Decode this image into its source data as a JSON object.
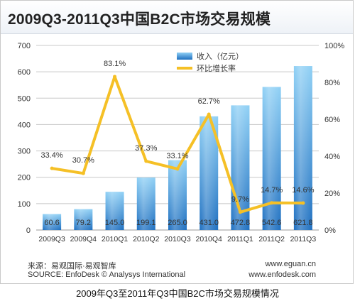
{
  "title": "2009Q3-2011Q3中国B2C市场交易规模",
  "caption": "2009年Q3至2011年Q3中国B2C市场交易规模情况",
  "footer": {
    "source_cn": "来源：易观国际·易观智库",
    "source_en": "SOURCE: EnfoDesk © Analysys International",
    "site_1": "www.eguan.cn",
    "site_2": "www.enfodesk.com"
  },
  "colors": {
    "bar_top": "#8fd0f5",
    "bar_bottom": "#1e6fc0",
    "line": "#f5c026",
    "grid": "#c8c8c8"
  },
  "chart_data": {
    "type": "bar",
    "categories": [
      "2009Q3",
      "2009Q4",
      "2010Q1",
      "2010Q2",
      "2010Q3",
      "2010Q4",
      "2011Q1",
      "2011Q2",
      "2011Q3"
    ],
    "series": [
      {
        "name": "收入（亿元）",
        "type": "bar",
        "axis": "left",
        "values": [
          60.6,
          79.2,
          145.0,
          199.1,
          265.0,
          431.0,
          472.8,
          542.6,
          621.8
        ],
        "labels": [
          "60.6",
          "79.2",
          "145.0",
          "199.1",
          "265.0",
          "431.0",
          "472.8",
          "542.6",
          "621.8"
        ]
      },
      {
        "name": "环比增长率",
        "type": "line",
        "axis": "right",
        "values": [
          33.4,
          30.7,
          83.1,
          37.3,
          33.1,
          62.7,
          9.7,
          14.7,
          14.6
        ],
        "labels": [
          "33.4%",
          "30.7%",
          "83.1%",
          "37.3%",
          "33.1%",
          "62.7%",
          "9.7%",
          "14.7%",
          "14.6%"
        ]
      }
    ],
    "y_left": {
      "min": 0,
      "max": 700,
      "ticks": [
        "0",
        "100",
        "200",
        "300",
        "400",
        "500",
        "600",
        "700"
      ]
    },
    "y_right": {
      "min": 0,
      "max": 100,
      "ticks": [
        "0%",
        "20%",
        "40%",
        "60%",
        "80%",
        "100%"
      ]
    },
    "grid": true,
    "legend_position": "top-center"
  }
}
